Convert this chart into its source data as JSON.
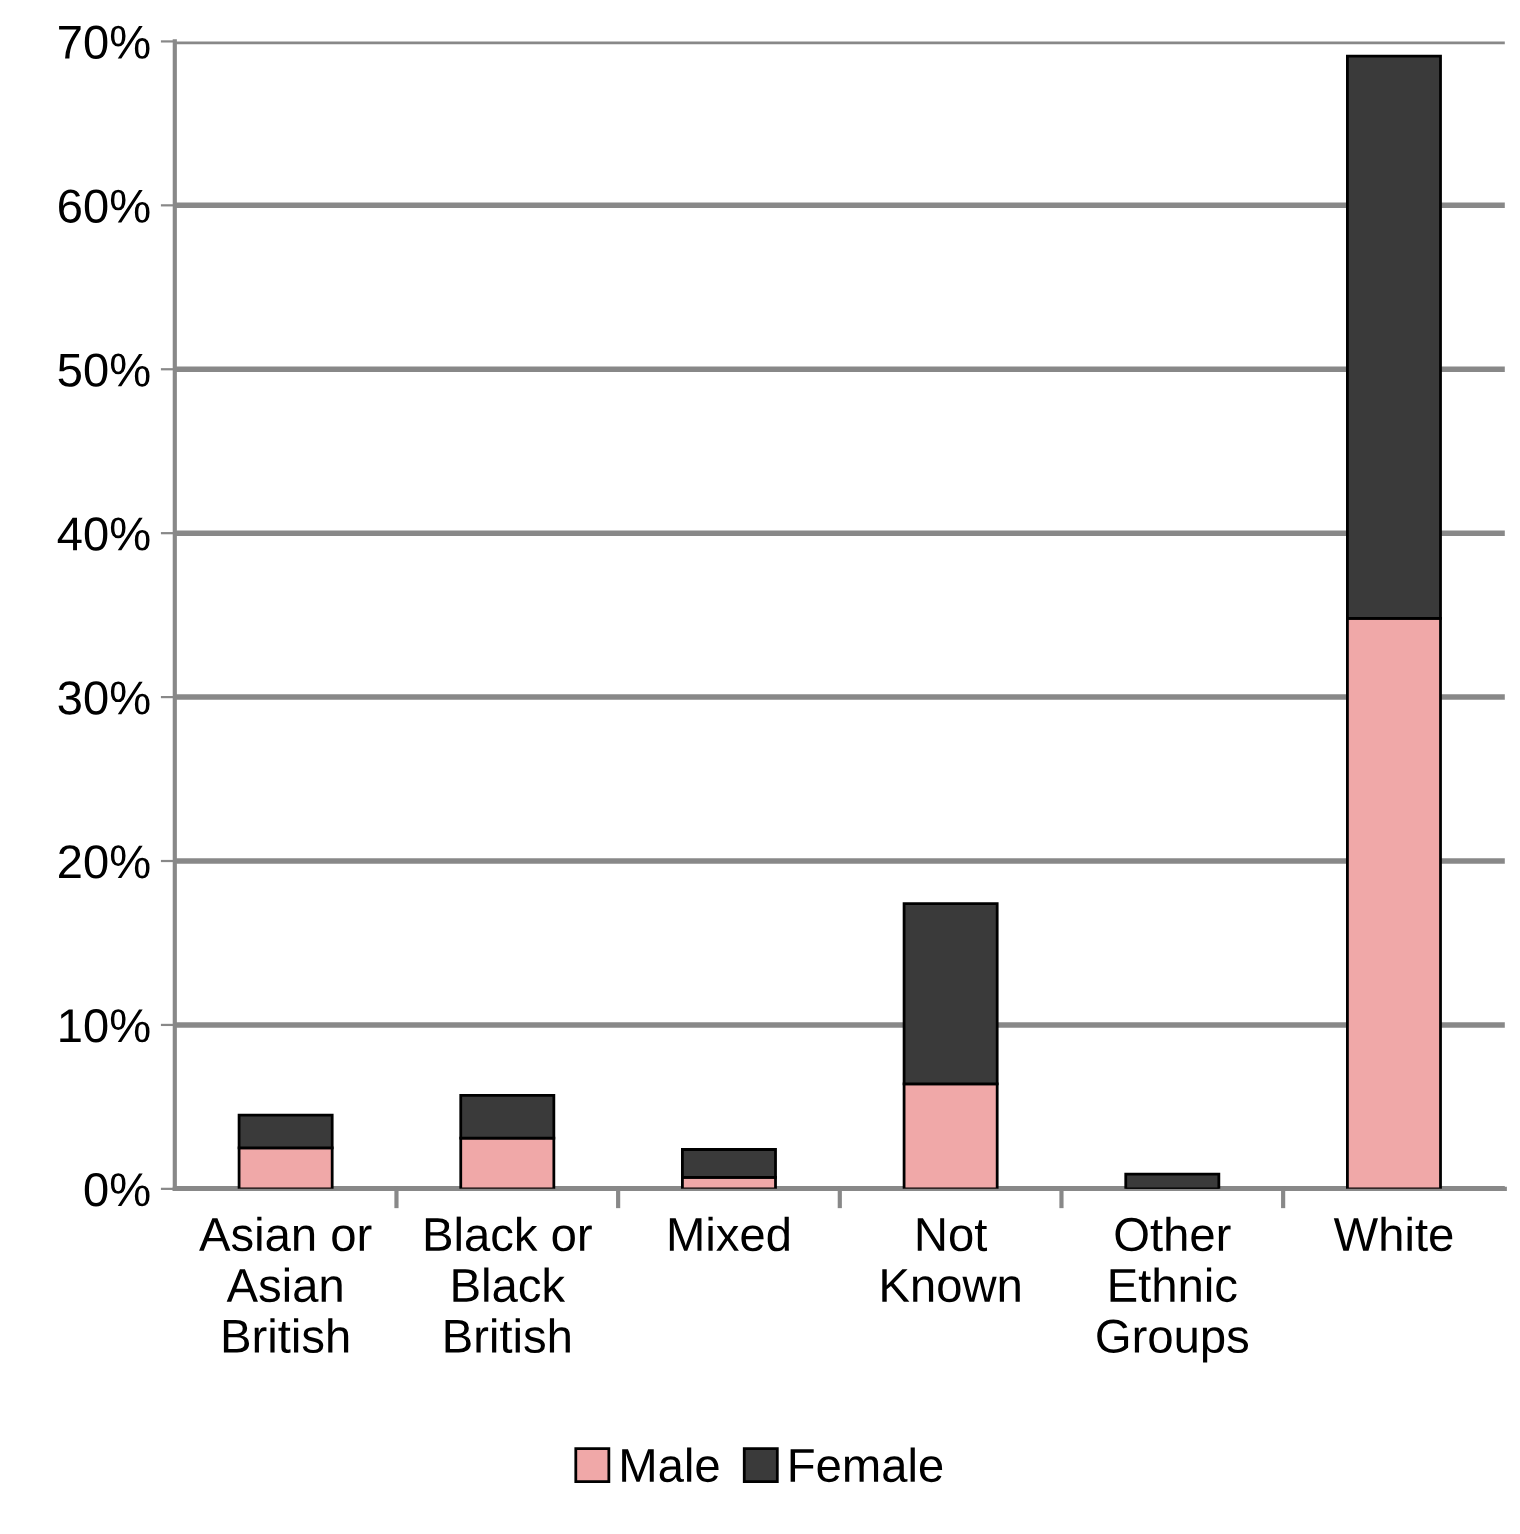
{
  "chart_data": {
    "type": "bar",
    "stacked": true,
    "categories": [
      "Asian or\nAsian\nBritish",
      "Black or\nBlack\nBritish",
      "Mixed",
      "Not\nKnown",
      "Other\nEthnic\nGroups",
      "White"
    ],
    "series": [
      {
        "name": "Male",
        "color": "#f0a8a8",
        "values": [
          2.5,
          3.1,
          0.7,
          6.4,
          null,
          34.8
        ]
      },
      {
        "name": "Female",
        "color": "#3a3a3a",
        "values": [
          2.0,
          2.6,
          1.7,
          11.0,
          0.9,
          34.3
        ]
      }
    ],
    "ylim": [
      0,
      70
    ],
    "yticks": [
      {
        "value": 0,
        "label": "0%"
      },
      {
        "value": 10,
        "label": "10%"
      },
      {
        "value": 20,
        "label": "20%"
      },
      {
        "value": 30,
        "label": "30%"
      },
      {
        "value": 40,
        "label": "40%"
      },
      {
        "value": 50,
        "label": "50%"
      },
      {
        "value": 60,
        "label": "60%"
      },
      {
        "value": 70,
        "label": "70%"
      }
    ],
    "grid": "y",
    "legend": "bottom"
  }
}
